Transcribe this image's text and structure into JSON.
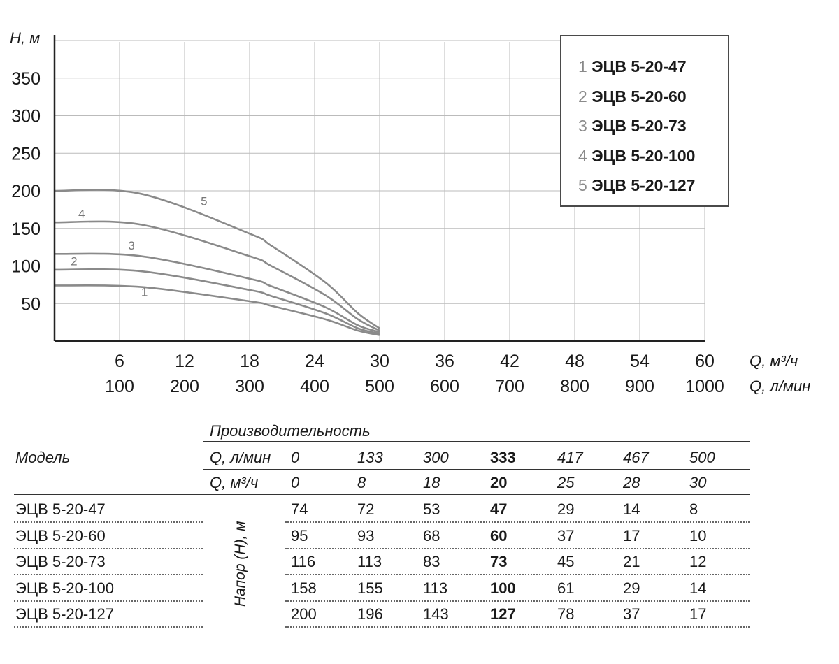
{
  "chart_data": {
    "type": "line",
    "ylabel": "H, м",
    "xlabel": "Q, м³/ч",
    "xlabel2": "Q, л/мин",
    "yticks": [
      50,
      100,
      150,
      200,
      250,
      300,
      350
    ],
    "xticks": [
      6,
      12,
      18,
      24,
      30,
      36,
      42,
      48,
      54,
      60
    ],
    "xticks2": [
      100,
      200,
      300,
      400,
      500,
      600,
      700,
      800,
      900,
      1000
    ],
    "xlim": [
      0,
      60
    ],
    "ylim": [
      0,
      400
    ],
    "grid": true,
    "legend_position": "top-right",
    "x": [
      0,
      8,
      18,
      20,
      25,
      28,
      30
    ],
    "series": [
      {
        "name": "ЭЦВ 5-20-47",
        "label": "1",
        "values": [
          74,
          72,
          53,
          47,
          29,
          14,
          8
        ]
      },
      {
        "name": "ЭЦВ 5-20-60",
        "label": "2",
        "values": [
          95,
          93,
          68,
          60,
          37,
          17,
          10
        ]
      },
      {
        "name": "ЭЦВ 5-20-73",
        "label": "3",
        "values": [
          116,
          113,
          83,
          73,
          45,
          21,
          12
        ]
      },
      {
        "name": "ЭЦВ 5-20-100",
        "label": "4",
        "values": [
          158,
          155,
          113,
          100,
          61,
          29,
          14
        ]
      },
      {
        "name": "ЭЦВ 5-20-127",
        "label": "5",
        "values": [
          200,
          196,
          143,
          127,
          78,
          37,
          17
        ]
      }
    ]
  },
  "legend": [
    {
      "num": "1",
      "name": "ЭЦВ 5-20-47"
    },
    {
      "num": "2",
      "name": "ЭЦВ 5-20-60"
    },
    {
      "num": "3",
      "name": "ЭЦВ 5-20-73"
    },
    {
      "num": "4",
      "name": "ЭЦВ 5-20-100"
    },
    {
      "num": "5",
      "name": "ЭЦВ 5-20-127"
    }
  ],
  "table": {
    "model_header": "Модель",
    "perf_header": "Производительность",
    "q_lmin_label": "Q, л/мин",
    "q_m3h_label": "Q, м³/ч",
    "q_lmin": [
      "0",
      "133",
      "300",
      "333",
      "417",
      "467",
      "500"
    ],
    "q_m3h": [
      "0",
      "8",
      "18",
      "20",
      "25",
      "28",
      "30"
    ],
    "head_label": "Напор (Н), м",
    "rows": [
      {
        "model": "ЭЦВ 5-20-47",
        "values": [
          "74",
          "72",
          "53",
          "47",
          "29",
          "14",
          "8"
        ]
      },
      {
        "model": "ЭЦВ 5-20-60",
        "values": [
          "95",
          "93",
          "68",
          "60",
          "37",
          "17",
          "10"
        ]
      },
      {
        "model": "ЭЦВ 5-20-73",
        "values": [
          "116",
          "113",
          "83",
          "73",
          "45",
          "21",
          "12"
        ]
      },
      {
        "model": "ЭЦВ 5-20-100",
        "values": [
          "158",
          "155",
          "113",
          "100",
          "61",
          "29",
          "14"
        ]
      },
      {
        "model": "ЭЦВ 5-20-127",
        "values": [
          "200",
          "196",
          "143",
          "127",
          "78",
          "37",
          "17"
        ]
      }
    ]
  },
  "colors": {
    "curve": "#8a8a8a",
    "grid": "#bbbbbb",
    "axis": "#222222"
  }
}
